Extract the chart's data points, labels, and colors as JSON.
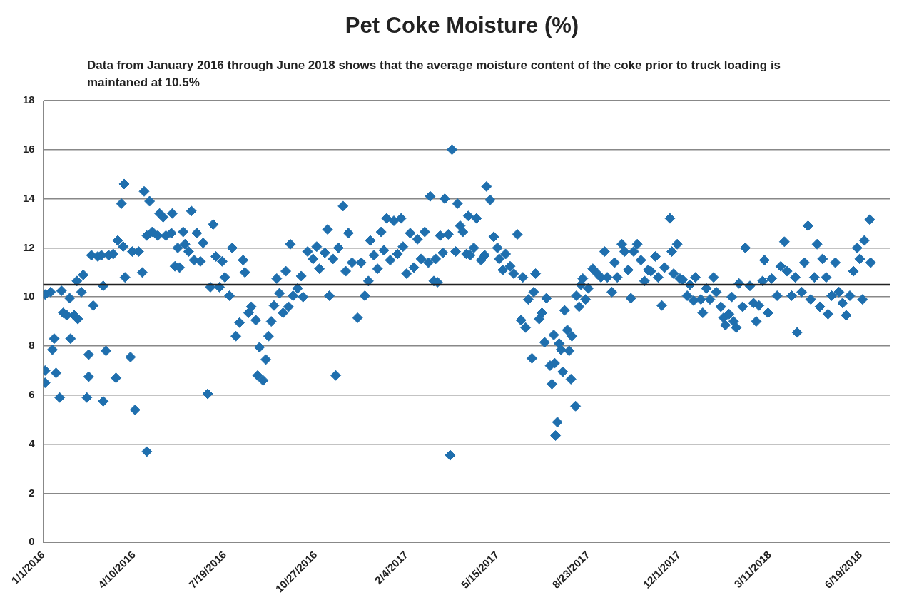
{
  "chart_data": {
    "type": "scatter",
    "title": "Pet Coke Moisture (%)",
    "subtitle": "Data from January 2016 through June 2018 shows that the average moisture content of the coke prior to truck loading is maintaned at 10.5%",
    "color": "#1f6fae",
    "marker": "diamond",
    "grid": "y",
    "legend": false,
    "xlim": [
      "2016-01-01",
      "2018-07-21"
    ],
    "xticks": [
      {
        "value": "2016-01-01",
        "label": "1/1/2016"
      },
      {
        "value": "2016-04-10",
        "label": "4/10/2016"
      },
      {
        "value": "2016-07-19",
        "label": "7/19/2016"
      },
      {
        "value": "2016-10-27",
        "label": "10/27/2016"
      },
      {
        "value": "2017-02-04",
        "label": "2/4/2017"
      },
      {
        "value": "2017-05-15",
        "label": "5/15/2017"
      },
      {
        "value": "2017-08-23",
        "label": "8/23/2017"
      },
      {
        "value": "2017-12-01",
        "label": "12/1/2017"
      },
      {
        "value": "2018-03-11",
        "label": "3/11/2018"
      },
      {
        "value": "2018-06-19",
        "label": "6/19/2018"
      }
    ],
    "ylim": [
      0,
      18
    ],
    "yticks": [
      0,
      2,
      4,
      6,
      8,
      10,
      12,
      14,
      16,
      18
    ],
    "ref_lines": [
      {
        "axis": "y",
        "value": 10.5,
        "color": "#222222"
      }
    ],
    "x": [
      "2016-01-03",
      "2016-01-03",
      "2016-01-03",
      "2016-01-09",
      "2016-01-11",
      "2016-01-13",
      "2016-01-15",
      "2016-01-19",
      "2016-01-21",
      "2016-01-23",
      "2016-01-27",
      "2016-01-30",
      "2016-01-31",
      "2016-02-04",
      "2016-02-07",
      "2016-02-08",
      "2016-02-12",
      "2016-02-14",
      "2016-02-18",
      "2016-02-20",
      "2016-02-20",
      "2016-02-23",
      "2016-02-25",
      "2016-03-01",
      "2016-03-05",
      "2016-03-07",
      "2016-03-07",
      "2016-03-10",
      "2016-03-13",
      "2016-03-18",
      "2016-03-21",
      "2016-03-23",
      "2016-03-27",
      "2016-03-29",
      "2016-03-30",
      "2016-03-31",
      "2016-04-06",
      "2016-04-08",
      "2016-04-11",
      "2016-04-15",
      "2016-04-19",
      "2016-04-21",
      "2016-04-24",
      "2016-04-24",
      "2016-04-27",
      "2016-04-30",
      "2016-05-06",
      "2016-05-08",
      "2016-05-12",
      "2016-05-15",
      "2016-05-21",
      "2016-05-22",
      "2016-05-25",
      "2016-05-28",
      "2016-05-30",
      "2016-06-03",
      "2016-06-05",
      "2016-06-09",
      "2016-06-12",
      "2016-06-15",
      "2016-06-18",
      "2016-06-22",
      "2016-06-25",
      "2016-06-30",
      "2016-07-03",
      "2016-07-06",
      "2016-07-09",
      "2016-07-13",
      "2016-07-16",
      "2016-07-19",
      "2016-07-24",
      "2016-07-27",
      "2016-07-31",
      "2016-08-04",
      "2016-08-08",
      "2016-08-10",
      "2016-08-14",
      "2016-08-17",
      "2016-08-22",
      "2016-08-24",
      "2016-08-26",
      "2016-08-30",
      "2016-09-02",
      "2016-09-05",
      "2016-09-08",
      "2016-09-11",
      "2016-09-14",
      "2016-09-17",
      "2016-09-21",
      "2016-09-24",
      "2016-09-27",
      "2016-09-29",
      "2016-10-02",
      "2016-10-07",
      "2016-10-11",
      "2016-10-13",
      "2016-10-18",
      "2016-10-24",
      "2016-10-28",
      "2016-10-31",
      "2016-11-06",
      "2016-11-09",
      "2016-11-11",
      "2016-11-15",
      "2016-11-18",
      "2016-11-21",
      "2016-11-26",
      "2016-11-29",
      "2016-12-02",
      "2016-12-06",
      "2016-12-12",
      "2016-12-16",
      "2016-12-20",
      "2016-12-24",
      "2016-12-26",
      "2016-12-30",
      "2017-01-03",
      "2017-01-07",
      "2017-01-10",
      "2017-01-13",
      "2017-01-17",
      "2017-01-21",
      "2017-01-25",
      "2017-01-29",
      "2017-01-31",
      "2017-02-04",
      "2017-02-08",
      "2017-02-12",
      "2017-02-16",
      "2017-02-20",
      "2017-02-24",
      "2017-02-28",
      "2017-03-02",
      "2017-03-06",
      "2017-03-08",
      "2017-03-10",
      "2017-03-13",
      "2017-03-16",
      "2017-03-18",
      "2017-03-22",
      "2017-03-24",
      "2017-03-26",
      "2017-03-30",
      "2017-04-01",
      "2017-04-04",
      "2017-04-07",
      "2017-04-11",
      "2017-04-13",
      "2017-04-15",
      "2017-04-19",
      "2017-04-22",
      "2017-04-27",
      "2017-05-01",
      "2017-05-03",
      "2017-05-07",
      "2017-05-11",
      "2017-05-15",
      "2017-05-17",
      "2017-05-21",
      "2017-05-24",
      "2017-05-29",
      "2017-06-02",
      "2017-06-06",
      "2017-06-10",
      "2017-06-12",
      "2017-06-15",
      "2017-06-18",
      "2017-06-22",
      "2017-06-24",
      "2017-06-26",
      "2017-06-30",
      "2017-07-03",
      "2017-07-06",
      "2017-07-08",
      "2017-07-12",
      "2017-07-14",
      "2017-07-16",
      "2017-07-17",
      "2017-07-18",
      "2017-07-20",
      "2017-07-22",
      "2017-07-24",
      "2017-07-26",
      "2017-07-28",
      "2017-07-31",
      "2017-08-02",
      "2017-08-04",
      "2017-08-05",
      "2017-08-09",
      "2017-08-10",
      "2017-08-13",
      "2017-08-15",
      "2017-08-17",
      "2017-08-20",
      "2017-08-23",
      "2017-08-28",
      "2017-09-02",
      "2017-09-06",
      "2017-09-10",
      "2017-09-13",
      "2017-09-18",
      "2017-09-21",
      "2017-09-24",
      "2017-09-29",
      "2017-10-02",
      "2017-10-06",
      "2017-10-09",
      "2017-10-12",
      "2017-10-16",
      "2017-10-20",
      "2017-10-24",
      "2017-10-28",
      "2017-10-31",
      "2017-11-05",
      "2017-11-08",
      "2017-11-12",
      "2017-11-15",
      "2017-11-21",
      "2017-11-23",
      "2017-11-25",
      "2017-11-29",
      "2017-12-02",
      "2017-12-05",
      "2017-12-10",
      "2017-12-13",
      "2017-12-17",
      "2017-12-19",
      "2017-12-25",
      "2017-12-27",
      "2017-12-31",
      "2018-01-04",
      "2018-01-08",
      "2018-01-11",
      "2018-01-16",
      "2018-01-19",
      "2018-01-21",
      "2018-01-25",
      "2018-01-28",
      "2018-01-30",
      "2018-02-02",
      "2018-02-05",
      "2018-02-09",
      "2018-02-12",
      "2018-02-17",
      "2018-02-21",
      "2018-02-24",
      "2018-02-27",
      "2018-03-03",
      "2018-03-05",
      "2018-03-09",
      "2018-03-13",
      "2018-03-19",
      "2018-03-23",
      "2018-03-27",
      "2018-03-30",
      "2018-04-04",
      "2018-04-08",
      "2018-04-10",
      "2018-04-15",
      "2018-04-18",
      "2018-04-22",
      "2018-04-25",
      "2018-04-29",
      "2018-05-02",
      "2018-05-05",
      "2018-05-08",
      "2018-05-12",
      "2018-05-14",
      "2018-05-18",
      "2018-05-22",
      "2018-05-26",
      "2018-05-30",
      "2018-06-03",
      "2018-06-07",
      "2018-06-11",
      "2018-06-15",
      "2018-06-18",
      "2018-06-21",
      "2018-06-23",
      "2018-06-29",
      "2018-06-30"
    ],
    "values": [
      6.5,
      7.0,
      10.1,
      10.2,
      7.85,
      8.3,
      6.9,
      5.9,
      10.25,
      9.35,
      9.25,
      9.95,
      8.3,
      9.25,
      10.65,
      9.1,
      10.2,
      10.9,
      5.9,
      6.75,
      7.65,
      11.7,
      9.65,
      11.65,
      11.7,
      5.75,
      10.45,
      7.8,
      11.7,
      11.75,
      6.7,
      12.3,
      13.8,
      12.05,
      14.6,
      10.8,
      7.55,
      11.85,
      5.4,
      11.85,
      11.0,
      14.3,
      12.5,
      3.7,
      13.9,
      12.65,
      12.5,
      13.4,
      13.25,
      12.5,
      12.6,
      13.4,
      11.25,
      12.0,
      11.2,
      12.65,
      12.15,
      11.85,
      13.5,
      11.5,
      12.6,
      11.45,
      12.2,
      6.05,
      10.4,
      12.95,
      11.65,
      10.4,
      11.45,
      10.8,
      10.05,
      12.0,
      8.4,
      8.95,
      11.5,
      11.0,
      9.35,
      9.6,
      9.05,
      6.8,
      7.95,
      6.6,
      7.45,
      8.4,
      9.0,
      9.65,
      10.75,
      10.15,
      9.35,
      11.05,
      9.6,
      12.15,
      10.05,
      10.35,
      10.85,
      10.0,
      11.85,
      11.55,
      12.05,
      11.15,
      11.8,
      12.75,
      10.05,
      11.55,
      6.8,
      12.0,
      13.7,
      11.05,
      12.6,
      11.4,
      9.15,
      11.4,
      10.05,
      10.65,
      12.3,
      11.7,
      11.15,
      12.65,
      11.9,
      13.2,
      11.5,
      13.1,
      11.75,
      13.2,
      12.05,
      10.95,
      12.6,
      11.2,
      12.35,
      11.55,
      12.65,
      11.4,
      14.1,
      10.65,
      11.55,
      10.6,
      12.5,
      11.8,
      14.0,
      12.55,
      3.55,
      16.0,
      11.85,
      13.8,
      12.9,
      12.65,
      11.75,
      13.3,
      11.7,
      12.0,
      13.2,
      11.5,
      11.7,
      14.5,
      13.95,
      12.45,
      12.0,
      11.55,
      11.1,
      11.75,
      11.25,
      10.95,
      12.55,
      9.05,
      10.8,
      8.75,
      9.9,
      7.5,
      10.2,
      10.95,
      9.1,
      9.35,
      8.15,
      9.95,
      7.2,
      6.45,
      8.45,
      7.3,
      4.35,
      4.9,
      8.1,
      7.85,
      6.95,
      9.45,
      8.65,
      7.8,
      6.65,
      8.4,
      5.55,
      10.05,
      9.6,
      10.5,
      10.75,
      9.9,
      10.35,
      11.15,
      10.95,
      10.8,
      11.85,
      10.8,
      10.2,
      11.4,
      10.8,
      12.15,
      11.85,
      11.1,
      9.95,
      11.85,
      12.15,
      11.5,
      10.65,
      11.1,
      11.05,
      11.65,
      10.8,
      9.65,
      11.2,
      13.2,
      11.85,
      10.95,
      12.15,
      10.75,
      10.7,
      10.05,
      10.5,
      9.85,
      10.8,
      9.9,
      9.35,
      10.35,
      9.9,
      10.8,
      10.2,
      9.6,
      9.15,
      8.85,
      9.3,
      10.0,
      9.0,
      8.75,
      10.55,
      9.6,
      12.0,
      10.45,
      9.75,
      9.0,
      9.65,
      10.65,
      11.5,
      9.35,
      10.75,
      10.05,
      11.25,
      12.25,
      11.05,
      10.05,
      10.8,
      8.55,
      10.2,
      11.4,
      12.9,
      9.9,
      10.8,
      12.15,
      9.6,
      11.55,
      10.8,
      9.3,
      10.05,
      11.4,
      10.2,
      9.75,
      9.25,
      10.05,
      11.05,
      12.0,
      11.55,
      9.9,
      12.3,
      13.15,
      11.4
    ]
  }
}
